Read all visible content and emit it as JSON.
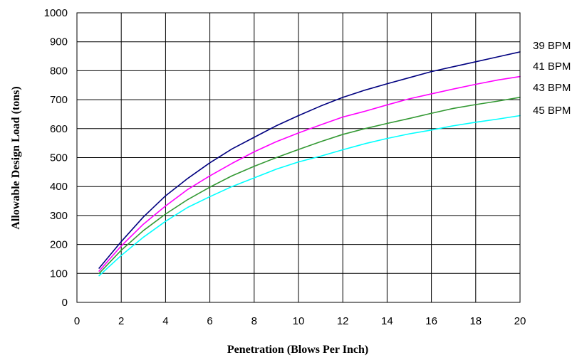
{
  "chart_data": {
    "type": "line",
    "xlabel": "Penetration (Blows Per Inch)",
    "ylabel": "Allowable Design Load (tons)",
    "xlim": [
      0,
      20
    ],
    "ylim": [
      0,
      1000
    ],
    "xticks": [
      0,
      2,
      4,
      6,
      8,
      10,
      12,
      14,
      16,
      18,
      20
    ],
    "yticks": [
      0,
      100,
      200,
      300,
      400,
      500,
      600,
      700,
      800,
      900,
      1000
    ],
    "grid": true,
    "legend": "right (labels beside line ends)",
    "x": [
      1,
      2,
      3,
      4,
      5,
      6,
      7,
      8,
      9,
      10,
      11,
      12,
      13,
      14,
      15,
      16,
      17,
      18,
      19,
      20
    ],
    "series": [
      {
        "name": "39 BPM",
        "color": "#000080",
        "values": [
          118,
          210,
          295,
          368,
          428,
          482,
          530,
          570,
          610,
          645,
          678,
          708,
          733,
          755,
          776,
          797,
          814,
          831,
          848,
          865
        ]
      },
      {
        "name": "41 BPM",
        "color": "#FF00FF",
        "values": [
          108,
          195,
          270,
          333,
          390,
          437,
          480,
          520,
          555,
          585,
          613,
          640,
          660,
          682,
          703,
          720,
          737,
          753,
          768,
          780
        ]
      },
      {
        "name": "43 BPM",
        "color": "#339933",
        "values": [
          100,
          180,
          248,
          305,
          355,
          398,
          437,
          470,
          500,
          528,
          555,
          580,
          600,
          618,
          635,
          653,
          670,
          683,
          695,
          708
        ]
      },
      {
        "name": "45 BPM",
        "color": "#00FFFF",
        "values": [
          92,
          162,
          225,
          280,
          328,
          365,
          400,
          430,
          460,
          485,
          505,
          527,
          548,
          566,
          582,
          595,
          610,
          622,
          633,
          645
        ]
      }
    ]
  }
}
